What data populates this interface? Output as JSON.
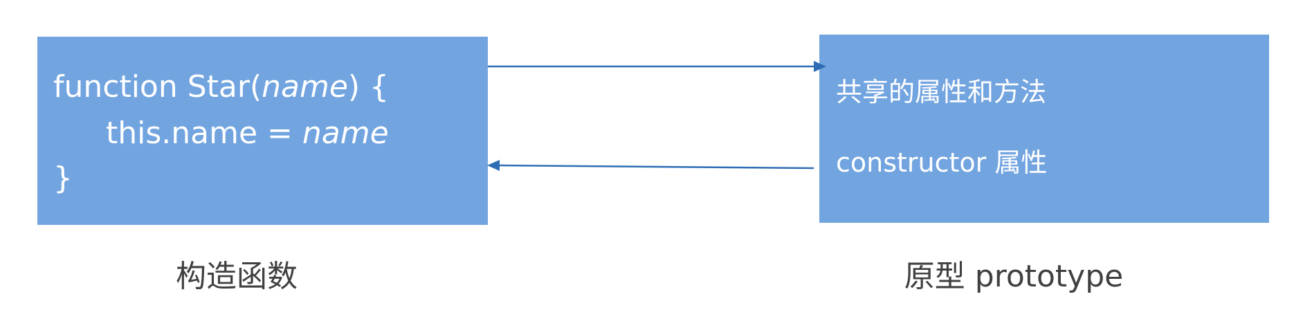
{
  "constructor_box": {
    "code": [
      [
        "function Star(",
        "name",
        ") {"
      ],
      [
        "this.name = ",
        "name"
      ],
      [
        "}"
      ]
    ],
    "label": "构造函数"
  },
  "prototype_box": {
    "items": [
      "共享的属性和方法",
      "constructor 属性"
    ],
    "label": "原型 prototype"
  }
}
